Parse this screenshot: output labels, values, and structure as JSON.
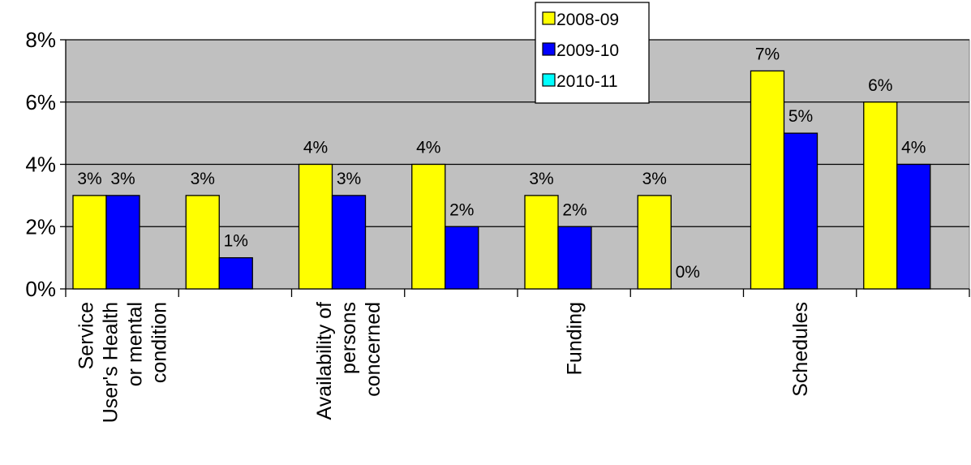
{
  "chart_data": {
    "type": "bar",
    "title": "",
    "xlabel": "",
    "ylabel": "",
    "ylim": [
      0,
      8
    ],
    "y_ticks": [
      "0%",
      "2%",
      "4%",
      "6%",
      "8%"
    ],
    "y_tick_values": [
      0,
      2,
      4,
      6,
      8
    ],
    "grid": true,
    "legend_position": "top-right",
    "plot_background": "#c0c0c0",
    "categories": [
      {
        "lines": [
          "Service",
          "User's Health",
          "or mental",
          "condition"
        ]
      },
      {
        "lines": []
      },
      {
        "lines": [
          "Availability of",
          "persons",
          "concerned"
        ]
      },
      {
        "lines": []
      },
      {
        "lines": [
          "Funding"
        ]
      },
      {
        "lines": []
      },
      {
        "lines": [
          "Schedules"
        ]
      },
      {
        "lines": []
      }
    ],
    "series": [
      {
        "name": "2008-09",
        "color": "#ffff00",
        "values": [
          3,
          3,
          4,
          4,
          3,
          3,
          7,
          6
        ],
        "labels": [
          "3%",
          "3%",
          "4%",
          "4%",
          "3%",
          "3%",
          "7%",
          "6%"
        ]
      },
      {
        "name": "2009-10",
        "color": "#0000ff",
        "values": [
          3,
          1,
          3,
          2,
          2,
          0,
          5,
          4
        ],
        "labels": [
          "3%",
          "1%",
          "3%",
          "2%",
          "2%",
          "0%",
          "5%",
          "4%"
        ]
      },
      {
        "name": "2010-11",
        "color": "#00ffff",
        "values": [
          null,
          null,
          null,
          null,
          null,
          null,
          null,
          null
        ],
        "labels": []
      }
    ]
  }
}
